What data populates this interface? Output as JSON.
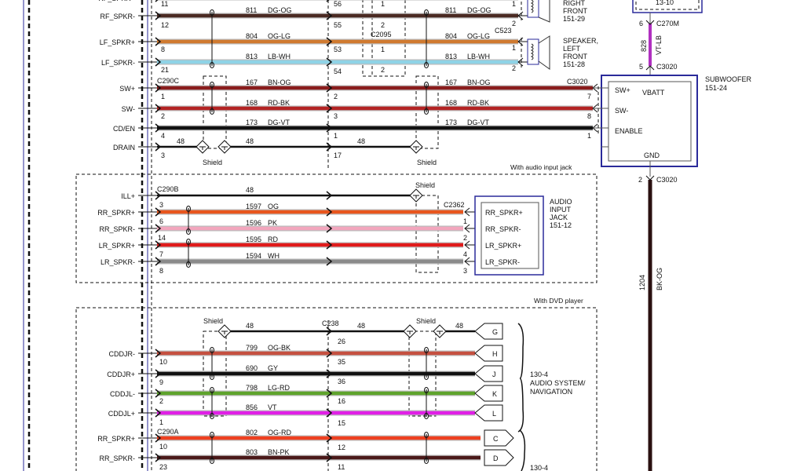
{
  "colors": {
    "component_outline": "#2a2a9a",
    "sub_vbatt_wire": "#b030c0",
    "sub_ground_wire": "#2a1010"
  },
  "wires": [
    {
      "signal": "RF_SPKR+",
      "pins": [
        "11",
        "56",
        "1",
        "1"
      ],
      "hex": "#5a3a2a"
    },
    {
      "signal": "RF_SPKR-",
      "circuit": "811",
      "color": "DG-OG",
      "pins": [
        "12",
        "55",
        "2",
        "2"
      ],
      "hex": "#4a2a22"
    },
    {
      "signal": "LF_SPKR+",
      "circuit": "804",
      "color": "OG-LG",
      "pins": [
        "8",
        "53",
        "1",
        "1"
      ],
      "hex": "#d07a30"
    },
    {
      "signal": "LF_SPKR-",
      "circuit": "813",
      "color": "LB-WH",
      "pins": [
        "21",
        "54",
        "2",
        "2"
      ],
      "hex": "#8fd3e6"
    },
    {
      "signal": "SW+",
      "circuit": "167",
      "color": "BN-OG",
      "pins": [
        "1",
        "2",
        "7"
      ],
      "hex": "#8a1c1c"
    },
    {
      "signal": "SW-",
      "circuit": "168",
      "color": "RD-BK",
      "pins": [
        "2",
        "3",
        "8"
      ],
      "hex": "#b32424"
    },
    {
      "signal": "CD/EN",
      "circuit": "173",
      "color": "DG-VT",
      "pins": [
        "4",
        "1",
        "1"
      ],
      "hex": "#111111"
    },
    {
      "signal": "DRAIN",
      "circuit": "48",
      "pins": [
        "3",
        "17"
      ],
      "hex": "#111111"
    },
    {
      "signal": "ILL+",
      "circuit": "48",
      "pins": [],
      "hex": "#111111"
    },
    {
      "signal": "RR_SPKR+",
      "circuit": "1597",
      "color": "OG",
      "pins": [
        "3"
      ],
      "hex": "#e8561e"
    },
    {
      "signal": "RR_SPKR-",
      "circuit": "1596",
      "color": "PK",
      "pins": [
        "6",
        "1"
      ],
      "hex": "#f2a6bd"
    },
    {
      "signal": "LR_SPKR+",
      "circuit": "1595",
      "color": "RD",
      "pins": [
        "14",
        "2"
      ],
      "hex": "#e01b1b"
    },
    {
      "signal": "LR_SPKR-",
      "circuit": "1594",
      "color": "WH",
      "pins": [
        "7",
        "4",
        "8",
        "3"
      ],
      "hex": "#8a8a8a"
    },
    {
      "signal": "",
      "circuit": "48",
      "pins": [],
      "hex": "#111111"
    },
    {
      "signal": "CDDJR-",
      "circuit": "799",
      "color": "OG-BK",
      "pins": [
        "10",
        "26"
      ],
      "hex": "#c55040"
    },
    {
      "signal": "CDDJR+",
      "circuit": "690",
      "color": "GY",
      "pins": [
        "9",
        "35"
      ],
      "hex": "#111111"
    },
    {
      "signal": "CDDJL-",
      "circuit": "798",
      "color": "LG-RD",
      "pins": [
        "2",
        "36"
      ],
      "hex": "#5ea32c"
    },
    {
      "signal": "CDDJL+",
      "circuit": "856",
      "color": "VT",
      "pins": [
        "1",
        "16",
        "15"
      ],
      "hex": "#e020e6"
    },
    {
      "signal": "RR_SPKR+",
      "circuit": "802",
      "color": "OG-RD",
      "pins": [
        "10",
        "12"
      ],
      "hex": "#ee4020"
    },
    {
      "signal": "RR_SPKR-",
      "circuit": "803",
      "color": "BN-PK",
      "pins": [
        "23",
        "11"
      ],
      "hex": "#4a1818"
    }
  ],
  "connectors": {
    "c290c": "C290C",
    "c2095": "C2095",
    "c523": "C523",
    "c3020_sw": "C3020",
    "c290b": "C290B",
    "c2362": "C2362",
    "c238": "C238",
    "c290a": "C290A",
    "c270m": "C270M",
    "c3020_top": "C3020",
    "c3020_bottom": "C3020"
  },
  "shield_label": "Shield",
  "speaker_rf": {
    "lines": [
      "RIGHT",
      "FRONT",
      "151-29"
    ]
  },
  "speaker_lf": {
    "lines": [
      "SPEAKER,",
      "LEFT",
      "FRONT",
      "151-28"
    ]
  },
  "top_box": {
    "label": "13-10"
  },
  "vbatt_wire": {
    "pin_top": "6",
    "pin_bottom": "5",
    "circuit": "828",
    "color": "VT-LB"
  },
  "ground_wire": {
    "pin": "2",
    "circuit": "1204",
    "color": "BK-OG"
  },
  "subwoofer": {
    "title": [
      "SUBWOOFER",
      "151-24"
    ],
    "sw_plus": "SW+",
    "vbatt": "VBATT",
    "sw_minus": "SW-",
    "enable": "ENABLE",
    "gnd": "GND"
  },
  "audio_section_label": "With audio input jack",
  "audio_jack": {
    "title": [
      "AUDIO",
      "INPUT",
      "JACK",
      "151-12"
    ],
    "pins": [
      "RR_SPKR+",
      "RR_SPKR-",
      "LR_SPKR+",
      "LR_SPKR-"
    ]
  },
  "dvd_section_label": "With DVD player",
  "dvd_terminals": [
    "G",
    "H",
    "J",
    "K",
    "L"
  ],
  "nav_terminals": [
    "C",
    "D"
  ],
  "nav_label": [
    "130-4",
    "AUDIO SYSTEM/",
    "NAVIGATION"
  ],
  "nav_label2": "130-4"
}
